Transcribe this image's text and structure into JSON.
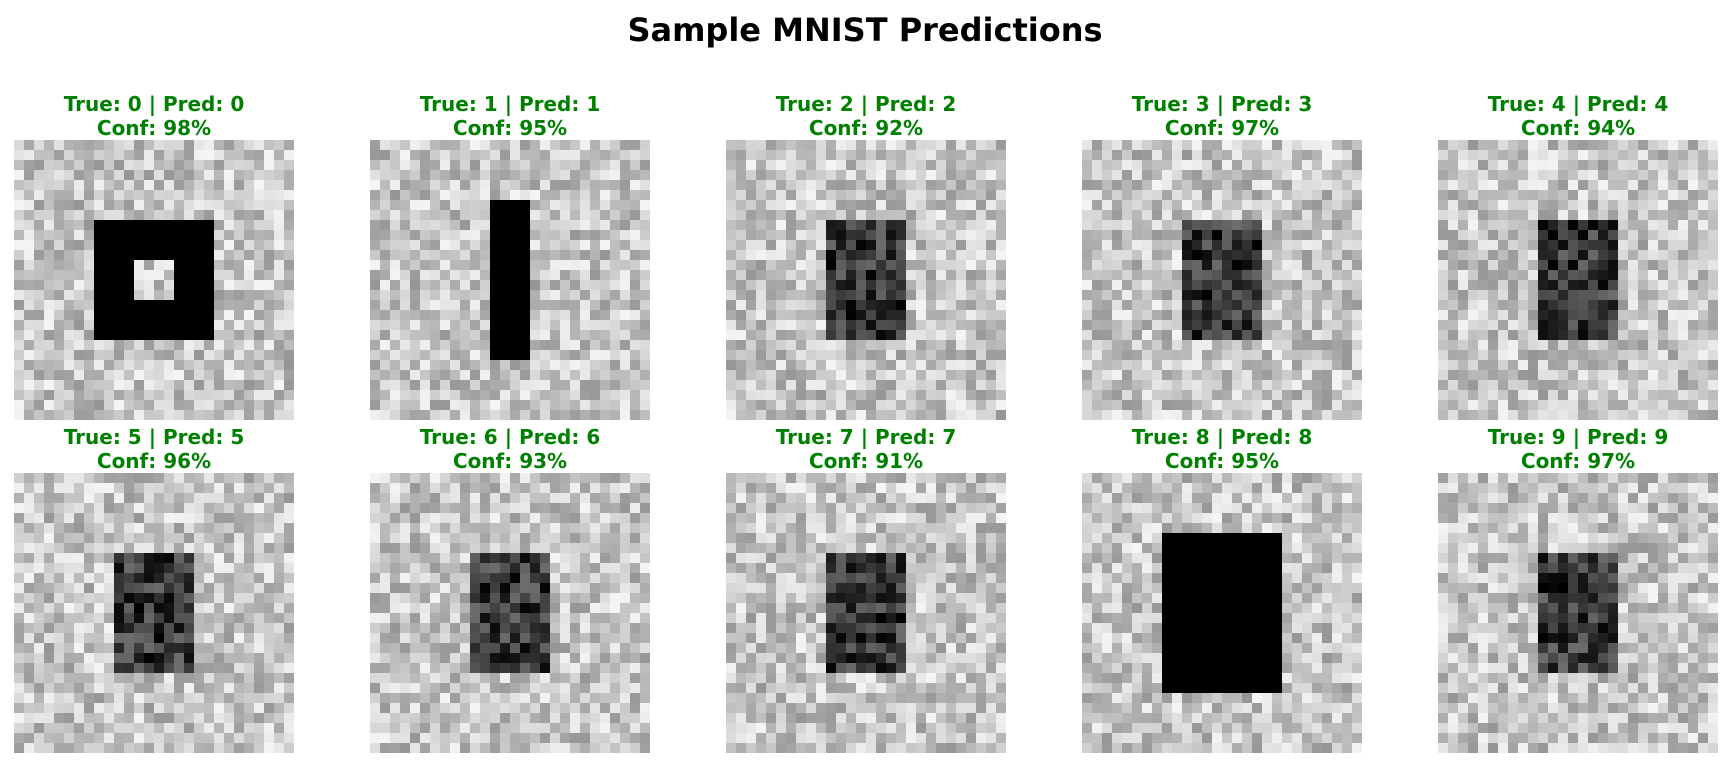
{
  "figure": {
    "title": "Sample MNIST Predictions",
    "correct_color": "#008000"
  },
  "panels": [
    {
      "true_label": "True: 0",
      "pred_label": "Pred: 0",
      "conf_label": "Conf: 98%",
      "confidence": 0.98,
      "shape": "ring"
    },
    {
      "true_label": "True: 1",
      "pred_label": "Pred: 1",
      "conf_label": "Conf: 95%",
      "confidence": 0.95,
      "shape": "bar"
    },
    {
      "true_label": "True: 2",
      "pred_label": "Pred: 2",
      "conf_label": "Conf: 92%",
      "confidence": 0.92,
      "shape": "noisy-block"
    },
    {
      "true_label": "True: 3",
      "pred_label": "Pred: 3",
      "conf_label": "Conf: 97%",
      "confidence": 0.97,
      "shape": "noisy-block"
    },
    {
      "true_label": "True: 4",
      "pred_label": "Pred: 4",
      "conf_label": "Conf: 94%",
      "confidence": 0.94,
      "shape": "noisy-block"
    },
    {
      "true_label": "True: 5",
      "pred_label": "Pred: 5",
      "conf_label": "Conf: 96%",
      "confidence": 0.96,
      "shape": "noisy-block"
    },
    {
      "true_label": "True: 6",
      "pred_label": "Pred: 6",
      "conf_label": "Conf: 93%",
      "confidence": 0.93,
      "shape": "noisy-block"
    },
    {
      "true_label": "True: 7",
      "pred_label": "Pred: 7",
      "conf_label": "Conf: 91%",
      "confidence": 0.91,
      "shape": "noisy-block"
    },
    {
      "true_label": "True: 8",
      "pred_label": "Pred: 8",
      "conf_label": "Conf: 95%",
      "confidence": 0.95,
      "shape": "solid-block"
    },
    {
      "true_label": "True: 9",
      "pred_label": "Pred: 9",
      "conf_label": "Conf: 97%",
      "confidence": 0.97,
      "shape": "noisy-block"
    }
  ]
}
